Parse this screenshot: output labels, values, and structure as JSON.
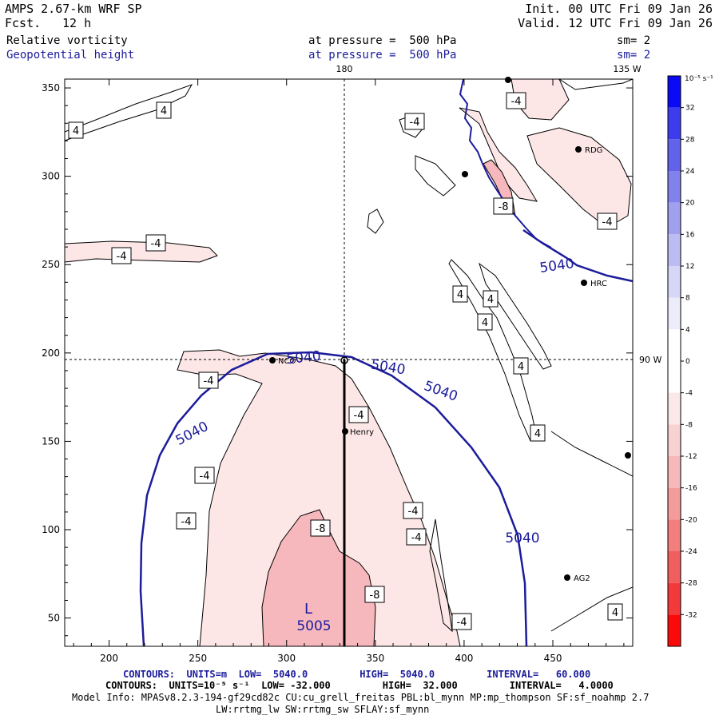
{
  "header": {
    "model": "AMPS 2.67-km WRF SP",
    "fcst_label": "Fcst.",
    "fcst_value": "12 h",
    "init": "Init. 00 UTC Fri 09 Jan 26",
    "valid": "Valid. 12 UTC Fri 09 Jan 26",
    "field1": "Relative vorticity",
    "field2": "Geopotential height",
    "pressure1": "at pressure =  500 hPa",
    "pressure2": "at pressure =  500 hPa",
    "sm1": "sm= 2",
    "sm2": "sm= 2"
  },
  "map": {
    "lon_180": "180",
    "lon_135w": "135 W",
    "lon_90w": "90 W",
    "stations": [
      "HRC",
      "RDG",
      "Henry",
      "AG2",
      "NCO"
    ]
  },
  "footer": {
    "line1": "CONTOURS:  UNITS=m  LOW=  5040.0         HIGH=  5040.0         INTERVAL=   60.000",
    "line2": "CONTOURS:  UNITS=10⁻⁵ s⁻¹  LOW= -32.000         HIGH=  32.000         INTERVAL=   4.0000",
    "line3": "Model Info: MPASv8.2.3-194-gf29cd82c CU:cu_grell_freitas PBL:bl_mynn MP:mp_thompson SF:sf_noahmp 2.7",
    "line4": "LW:rrtmg_lw SW:rrtmg_sw SFLAY:sf_mynn"
  },
  "chart_data": {
    "type": "contour-map",
    "x_ticks": [
      200,
      250,
      300,
      350,
      400,
      450
    ],
    "y_ticks": [
      50,
      100,
      150,
      200,
      250,
      300,
      350
    ],
    "xlim": [
      175,
      495
    ],
    "ylim": [
      34,
      355
    ],
    "height_contours": [
      {
        "label": "5040",
        "value": 5040
      },
      {
        "label": "5040",
        "value": 5040
      },
      {
        "label": "5040",
        "value": 5040
      },
      {
        "label": "5040",
        "value": 5040
      },
      {
        "label": "5040",
        "value": 5040
      },
      {
        "label": "5040",
        "value": 5040
      }
    ],
    "low_center": {
      "letter": "L",
      "value": "5005"
    },
    "vorticity_labels": [
      "4",
      "4",
      "-4",
      "-4",
      "-4",
      "-4",
      "-8",
      "-4",
      "-4",
      "4",
      "4",
      "4",
      "4",
      "4",
      "-4",
      "-4",
      "-4",
      "-4",
      "-4",
      "-8",
      "-8",
      "-4",
      "4"
    ],
    "colorbar": {
      "units": "10⁻⁵ s⁻¹",
      "ticks": [
        "32",
        "28",
        "24",
        "20",
        "16",
        "12",
        "8",
        "4",
        "0",
        "-4",
        "-8",
        "-12",
        "-16",
        "-20",
        "-24",
        "-28",
        "-32"
      ],
      "positive_colors": [
        "#ffffff",
        "#ececfa",
        "#d6d6f6",
        "#bcbcf2",
        "#a0a0ef",
        "#8282ec",
        "#6262ea",
        "#3c3cee",
        "#0a0af5"
      ],
      "negative_colors": [
        "#ffffff",
        "#fbe8e8",
        "#f8d2d2",
        "#f6b8b8",
        "#f49c9c",
        "#f27e7e",
        "#f15e5e",
        "#f33a3a",
        "#fb0a0a"
      ]
    }
  }
}
